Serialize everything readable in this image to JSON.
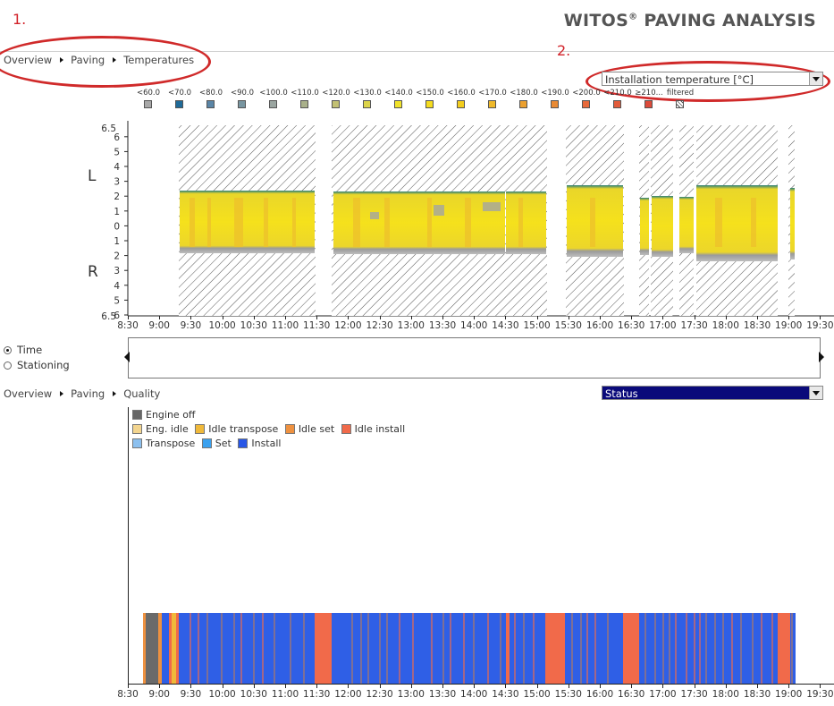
{
  "header": {
    "brand_prefix": "WITOS",
    "brand_reg": "®",
    "brand_suffix": "PAVING ANALYSIS"
  },
  "annotations": {
    "marker1": "1.",
    "marker2": "2."
  },
  "breadcrumb_top": {
    "items": [
      "Overview",
      "Paving",
      "Temperatures"
    ]
  },
  "temp_select": {
    "value": "Installation temperature [°C]"
  },
  "temp_legend": {
    "labels": [
      "<60.0",
      "<70.0",
      "<80.0",
      "<90.0",
      "<100.0",
      "<110.0",
      "<120.0",
      "<130.0",
      "<140.0",
      "<150.0",
      "<160.0",
      "<170.0",
      "<180.0",
      "<190.0",
      "<200.0",
      "<210.0",
      "≥210...",
      "filtered"
    ],
    "colors": [
      "#a8a8a8",
      "#1f6a98",
      "#5a85a6",
      "#7895a0",
      "#9aa5a0",
      "#a9b08a",
      "#c2c073",
      "#dcd44a",
      "#f0e22a",
      "#f5dc1e",
      "#f3cd1d",
      "#efb92a",
      "#eba02f",
      "#e98a33",
      "#e7693a",
      "#e25c3b",
      "#dc4a3a",
      "#ffffff"
    ]
  },
  "temp_chart": {
    "y_top": "6.5",
    "y_ticks": [
      "6",
      "5",
      "4",
      "3",
      "2",
      "1",
      "0",
      "1",
      "2",
      "3",
      "4",
      "5",
      "6"
    ],
    "y_bottom": "6.5",
    "side_left": "L",
    "side_right": "R"
  },
  "x_ticks": [
    "8:30",
    "9:00",
    "9:30",
    "10:00",
    "10:30",
    "11:00",
    "11:30",
    "12:00",
    "12:30",
    "13:00",
    "13:30",
    "14:00",
    "14:30",
    "15:00",
    "15:30",
    "16:00",
    "16:30",
    "17:00",
    "17:30",
    "18:00",
    "18:30",
    "19:00",
    "19:30"
  ],
  "mode": {
    "option_time": "Time",
    "option_stationing": "Stationing",
    "selected": "Time"
  },
  "breadcrumb_bottom": {
    "items": [
      "Overview",
      "Paving",
      "Quality"
    ]
  },
  "status_select": {
    "value": "Status"
  },
  "status_legend": {
    "items": [
      {
        "label": "Engine off",
        "color": "#666666"
      },
      {
        "label": "Eng. idle",
        "color": "#f3d58f"
      },
      {
        "label": "Idle transpose",
        "color": "#f0b93a"
      },
      {
        "label": "Idle set",
        "color": "#ee9140"
      },
      {
        "label": "Idle install",
        "color": "#f16a4a"
      },
      {
        "label": "Transpose",
        "color": "#8cc0ef"
      },
      {
        "label": "Set",
        "color": "#3aa1ef"
      },
      {
        "label": "Install",
        "color": "#2857e6"
      }
    ]
  },
  "colors": {
    "hatch_dark": "#444444",
    "temp_yellow": "#f3e21d",
    "install_blue": "#2f5fe6",
    "idle_install": "#f16a4a",
    "annotation_red": "#d02a2a"
  }
}
